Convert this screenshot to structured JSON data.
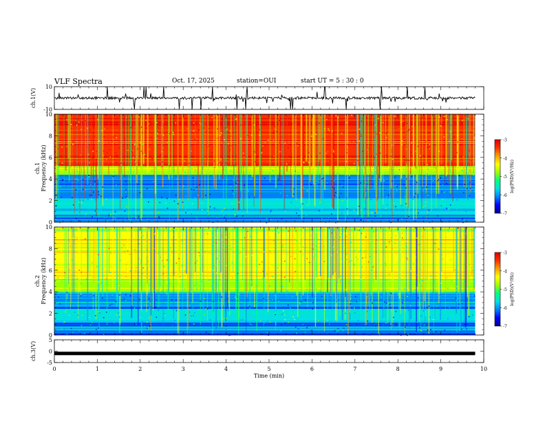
{
  "header": {
    "title": "VLF Spectra",
    "date": "Oct. 17, 2025",
    "station": "station=OUI",
    "start": "start UT =  5 : 30 : 0"
  },
  "colors": {
    "spectrogram_scale": [
      "#00008c",
      "#0000ff",
      "#0080ff",
      "#00e0e0",
      "#00ff80",
      "#a0ff00",
      "#ffff00",
      "#ffa000",
      "#ff3000",
      "#e00000",
      "#ffffff"
    ],
    "trace": "#000000"
  },
  "chart_data": [
    {
      "type": "line",
      "panel": "ch1-waveform",
      "ylabel": "ch.1(V)",
      "ylim": [
        -10,
        10
      ],
      "yticks": [
        "10",
        "-10"
      ],
      "baseline": 0,
      "xlim": [
        0,
        9.8
      ]
    },
    {
      "type": "heatmap",
      "panel": "ch1-spectrogram",
      "ylabel": "ch.1\nFrequency (kHz)",
      "ylabel_line1": "ch.1",
      "ylabel_line2": "Frequency (kHz)",
      "ylim": [
        0,
        10
      ],
      "yticks": [
        "0",
        "2",
        "4",
        "6",
        "8",
        "10"
      ],
      "xlim": [
        0,
        9.8
      ],
      "bands": [
        {
          "from": 0,
          "to": 0.7,
          "level": -6.2
        },
        {
          "from": 0.7,
          "to": 2.2,
          "level": -5.6
        },
        {
          "from": 2.2,
          "to": 4.4,
          "level": -6.1
        },
        {
          "from": 4.4,
          "to": 5.2,
          "level": -4.9
        },
        {
          "from": 5.2,
          "to": 10,
          "level": -3.5
        }
      ],
      "colorbar": {
        "label": "log(PSD)(V²/Hz)",
        "range": [
          -7,
          -3
        ],
        "ticks": [
          "-3",
          "-4",
          "-5",
          "-6",
          "-7"
        ]
      }
    },
    {
      "type": "heatmap",
      "panel": "ch2-spectrogram",
      "ylabel": "ch.2\nFrequency (kHz)",
      "ylabel_line1": "ch.2",
      "ylabel_line2": "Frequency (kHz)",
      "ylim": [
        0,
        10
      ],
      "yticks": [
        "0",
        "2",
        "4",
        "6",
        "8",
        "10"
      ],
      "xlim": [
        0,
        9.8
      ],
      "bands": [
        {
          "from": 0,
          "to": 1.2,
          "level": -6.0
        },
        {
          "from": 1.2,
          "to": 2.5,
          "level": -5.5
        },
        {
          "from": 2.5,
          "to": 4.0,
          "level": -5.9
        },
        {
          "from": 4.0,
          "to": 5.2,
          "level": -4.8
        },
        {
          "from": 5.2,
          "to": 10,
          "level": -4.5
        }
      ],
      "colorbar": {
        "label": "log(PSD)(V²/Hz)",
        "range": [
          -7,
          -3
        ],
        "ticks": [
          "-3",
          "-4",
          "-5",
          "-6",
          "-7"
        ]
      }
    },
    {
      "type": "line",
      "panel": "ch3-waveform",
      "ylabel": "ch.3(V)",
      "ylim": [
        -5,
        5
      ],
      "yticks": [
        "5",
        "0",
        "-5"
      ],
      "baseline": -1,
      "xlim": [
        0,
        9.8
      ]
    }
  ],
  "xaxis": {
    "label": "Time (min)",
    "range": [
      0,
      10
    ],
    "ticks": [
      "0",
      "1",
      "2",
      "3",
      "4",
      "5",
      "6",
      "7",
      "8",
      "9",
      "10"
    ]
  }
}
